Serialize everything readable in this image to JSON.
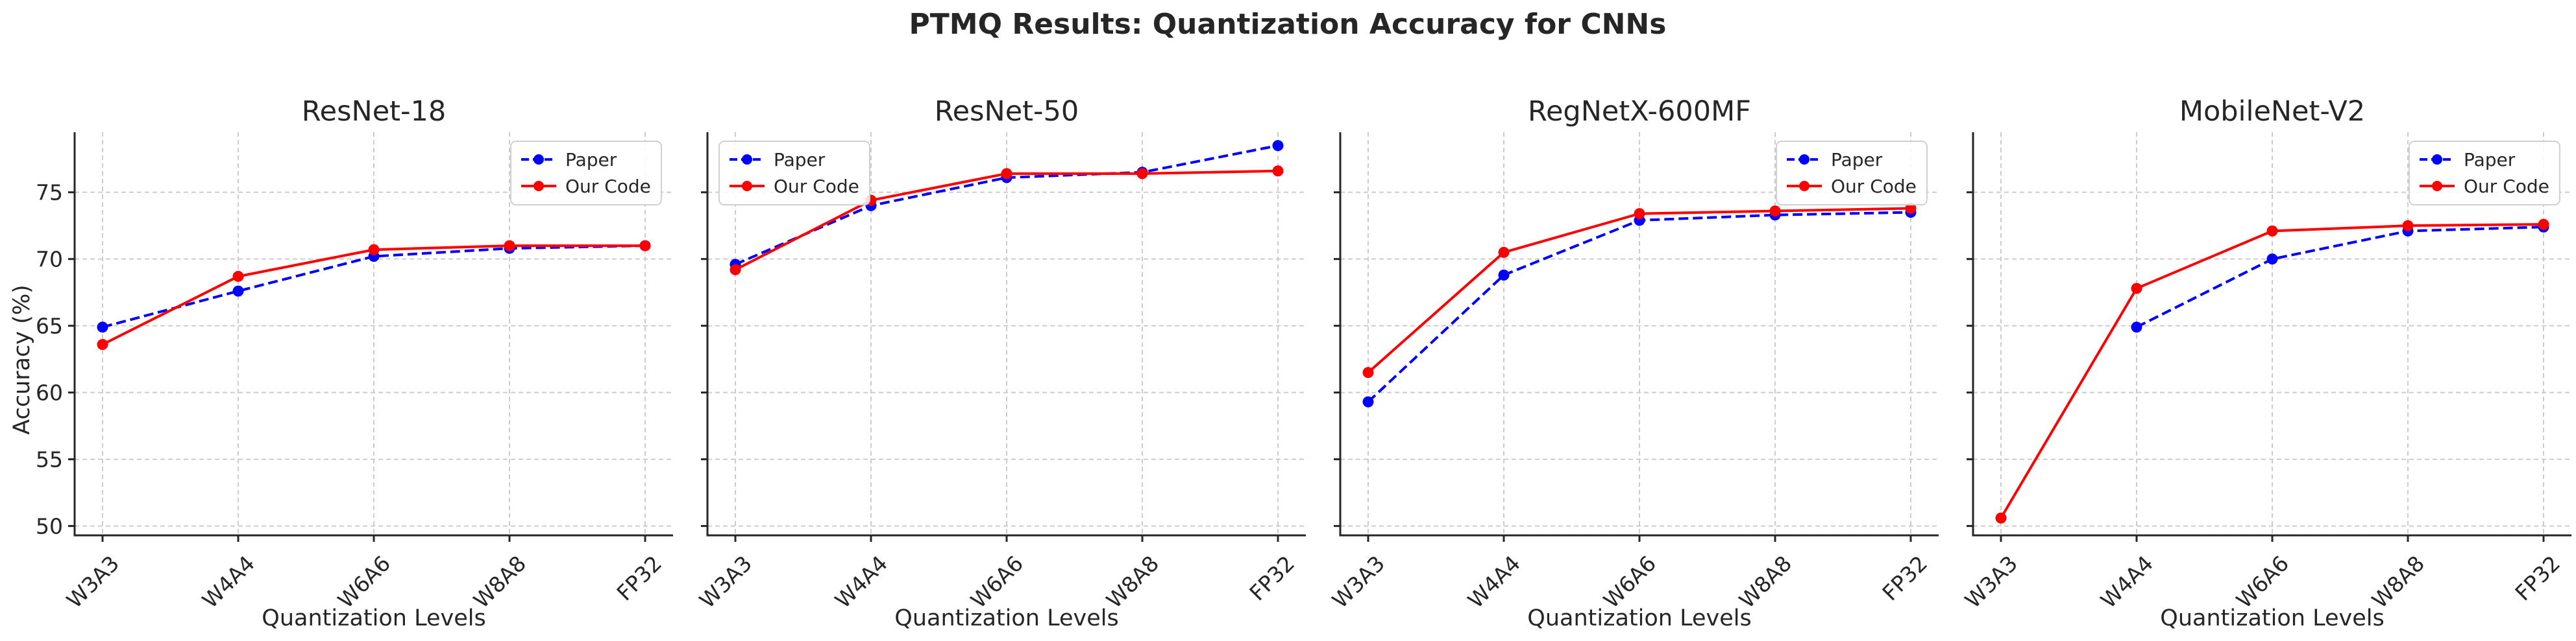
{
  "figure": {
    "suptitle": "PTMQ Results: Quantization Accuracy for CNNs",
    "ylabel": "Accuracy (%)"
  },
  "chart_data": [
    {
      "type": "line",
      "title": "ResNet-18",
      "xlabel": "Quantization Levels",
      "ylabel": "Accuracy (%)",
      "categories": [
        "W3A3",
        "W4A4",
        "W6A6",
        "W8A8",
        "FP32"
      ],
      "ylim": [
        49.3,
        79.5
      ],
      "yticks": [
        50,
        55,
        60,
        65,
        70,
        75
      ],
      "grid": true,
      "legend": "top-right",
      "series": [
        {
          "name": "Paper",
          "color": "#0000ff",
          "style": "dashed",
          "values": [
            64.9,
            67.6,
            70.2,
            70.8,
            71.0
          ]
        },
        {
          "name": "Our Code",
          "color": "#ff0000",
          "style": "solid",
          "values": [
            63.6,
            68.7,
            70.7,
            71.0,
            71.0
          ]
        }
      ]
    },
    {
      "type": "line",
      "title": "ResNet-50",
      "xlabel": "Quantization Levels",
      "ylabel": "",
      "categories": [
        "W3A3",
        "W4A4",
        "W6A6",
        "W8A8",
        "FP32"
      ],
      "ylim": [
        49.3,
        79.5
      ],
      "yticks": [
        50,
        55,
        60,
        65,
        70,
        75
      ],
      "grid": true,
      "legend": "top-left",
      "series": [
        {
          "name": "Paper",
          "color": "#0000ff",
          "style": "dashed",
          "values": [
            69.6,
            74.0,
            76.1,
            76.5,
            78.5
          ]
        },
        {
          "name": "Our Code",
          "color": "#ff0000",
          "style": "solid",
          "values": [
            69.2,
            74.4,
            76.4,
            76.4,
            76.6
          ]
        }
      ]
    },
    {
      "type": "line",
      "title": "RegNetX-600MF",
      "xlabel": "Quantization Levels",
      "ylabel": "",
      "categories": [
        "W3A3",
        "W4A4",
        "W6A6",
        "W8A8",
        "FP32"
      ],
      "ylim": [
        49.3,
        79.5
      ],
      "yticks": [
        50,
        55,
        60,
        65,
        70,
        75
      ],
      "grid": true,
      "legend": "top-right",
      "series": [
        {
          "name": "Paper",
          "color": "#0000ff",
          "style": "dashed",
          "values": [
            59.3,
            68.8,
            72.9,
            73.3,
            73.5
          ]
        },
        {
          "name": "Our Code",
          "color": "#ff0000",
          "style": "solid",
          "values": [
            61.5,
            70.5,
            73.4,
            73.6,
            73.8
          ]
        }
      ]
    },
    {
      "type": "line",
      "title": "MobileNet-V2",
      "xlabel": "Quantization Levels",
      "ylabel": "",
      "categories": [
        "W3A3",
        "W4A4",
        "W6A6",
        "W8A8",
        "FP32"
      ],
      "ylim": [
        49.3,
        79.5
      ],
      "yticks": [
        50,
        55,
        60,
        65,
        70,
        75
      ],
      "grid": true,
      "legend": "top-right",
      "series": [
        {
          "name": "Paper",
          "color": "#0000ff",
          "style": "dashed",
          "values": [
            null,
            64.9,
            70.0,
            72.1,
            72.4
          ]
        },
        {
          "name": "Our Code",
          "color": "#ff0000",
          "style": "solid",
          "values": [
            50.6,
            67.8,
            72.1,
            72.5,
            72.6
          ]
        }
      ]
    }
  ]
}
